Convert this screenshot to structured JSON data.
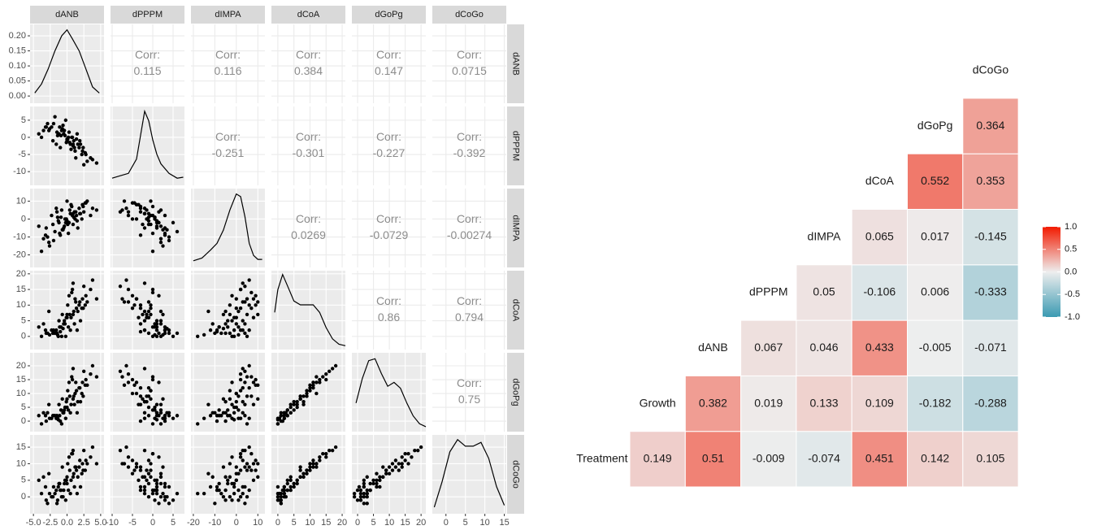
{
  "chart_data": [
    {
      "type": "pairs",
      "corr_label": "Corr:",
      "variables": [
        {
          "name": "dANB",
          "xlim": [
            -5.5,
            5.5
          ],
          "xticks": [
            {
              "value": -5,
              "label": "-5.0"
            },
            -2.5,
            {
              "value": 0,
              "label": "0.0"
            },
            2.5,
            {
              "value": 5,
              "label": "5.0"
            }
          ],
          "values": [
            0.5,
            -1.2,
            2.3,
            -3.1,
            1.0,
            0.2,
            -0.8,
            3.5,
            -2.0,
            1.8,
            -0.3,
            0.9,
            -1.5,
            2.8,
            0.0,
            -2.6,
            1.4,
            -0.6,
            3.0,
            -4.2,
            0.7,
            -1.0,
            2.0,
            -0.2,
            1.2,
            -3.5,
            0.4,
            -1.8,
            2.5,
            -0.9,
            1.6,
            -2.3,
            0.1,
            3.8,
            -1.3,
            0.6,
            -2.9,
            1.9,
            -0.4,
            2.2,
            -1.6,
            0.3,
            -3.8,
            1.1,
            -0.7,
            2.7,
            -2.1,
            0.8,
            -1.1,
            4.4,
            -0.1,
            1.5,
            -2.7,
            0.9,
            -1.4,
            2.4,
            -0.5,
            1.3,
            -3.2,
            0.0
          ],
          "density": {
            "x": [
              -4.8,
              -3.8,
              -2.8,
              -1.8,
              -0.8,
              0,
              0.8,
              1.8,
              2.8,
              3.8,
              4.8
            ],
            "y": [
              0.01,
              0.04,
              0.09,
              0.15,
              0.2,
              0.22,
              0.19,
              0.15,
              0.09,
              0.03,
              0.01
            ],
            "ylim": [
              -0.024,
              0.238
            ],
            "yticks": [
              {
                "value": 0,
                "label": "0.00"
              },
              0.05,
              {
                "value": 0.1,
                "label": "0.10"
              },
              0.15,
              {
                "value": 0.2,
                "label": "0.20"
              }
            ]
          }
        },
        {
          "name": "dPPPM",
          "xlim": [
            -10.4,
            7.8
          ],
          "xticks": [
            -10,
            -5,
            0,
            5
          ],
          "ylim": [
            -14,
            9
          ],
          "yticks": [
            -10,
            -5,
            0,
            5
          ],
          "values": [
            -2,
            1,
            -4,
            3,
            -1,
            0,
            2,
            -6,
            4,
            -3,
            0.5,
            -2.5,
            1.5,
            -5,
            -1,
            2.5,
            -0.5,
            3.5,
            -7,
            1,
            0,
            -3,
            -2,
            5,
            -4,
            2,
            -1.5,
            6,
            -8,
            0.5,
            -2,
            3,
            -0.5,
            -6.5,
            1,
            -3.5,
            4,
            -1,
            2,
            -5,
            -2,
            1.5,
            0,
            -3,
            2.5,
            -4.5,
            -1,
            0,
            3,
            -7.5,
            -1.5,
            1,
            2,
            -2,
            0.5,
            -3,
            1,
            -6,
            3,
            -0.5
          ],
          "density": {
            "x": [
              -10,
              -8,
              -6,
              -4,
              -3,
              -2,
              -1,
              0,
              1,
              2,
              4,
              6,
              7.5
            ],
            "y": [
              0.01,
              0.015,
              0.02,
              0.05,
              0.1,
              0.15,
              0.13,
              0.09,
              0.06,
              0.04,
              0.02,
              0.01,
              0.012
            ],
            "ylim": [
              -0.005,
              0.16
            ]
          }
        },
        {
          "name": "dIMPA",
          "xlim": [
            -21.1,
            13.3
          ],
          "xticks": [
            -20,
            -10,
            0,
            10
          ],
          "ylim": [
            -27,
            17
          ],
          "yticks": [
            -20,
            -10,
            0,
            10
          ],
          "values": [
            3,
            -2,
            8,
            -5,
            1,
            -8,
            5,
            2,
            -12,
            6,
            0,
            -3,
            4,
            9,
            -1,
            -15,
            2,
            -6,
            10,
            -4,
            7,
            -9,
            3,
            -2,
            0,
            -11,
            5,
            -7,
            4,
            1,
            -5,
            2,
            -3,
            6,
            -1,
            8,
            -10,
            3,
            -4,
            0,
            6,
            -2,
            -18,
            4,
            -6,
            9,
            -3,
            2,
            -8,
            5,
            0,
            -1,
            -13,
            3,
            1,
            7,
            -5,
            4,
            -9,
            10
          ],
          "density": {
            "x": [
              -20,
              -16,
              -12,
              -9,
              -6,
              -3,
              0,
              2,
              4,
              6,
              8,
              10,
              12
            ],
            "y": [
              0.002,
              0.004,
              0.01,
              0.015,
              0.025,
              0.04,
              0.052,
              0.05,
              0.035,
              0.015,
              0.006,
              0.003,
              0.003
            ],
            "ylim": [
              -0.003,
              0.056
            ]
          }
        },
        {
          "name": "dCoA",
          "xlim": [
            -2,
            21
          ],
          "xticks": [
            0,
            5,
            10,
            15,
            20
          ],
          "ylim": [
            -4.2,
            21
          ],
          "yticks": [
            0,
            5,
            10,
            15,
            20
          ],
          "values": [
            2,
            5,
            12,
            1,
            8,
            3,
            0,
            15,
            2,
            10,
            4,
            7,
            1,
            13,
            6,
            0.5,
            9,
            2.5,
            11,
            3,
            14,
            1.5,
            5,
            0,
            12,
            4,
            7,
            1,
            16,
            3,
            8,
            2,
            10,
            18,
            0,
            6,
            1,
            11,
            5,
            9,
            2,
            13,
            0,
            4,
            7,
            10,
            1,
            15,
            3,
            12,
            6,
            2,
            8,
            17,
            0.5,
            9,
            4,
            11,
            2,
            7
          ],
          "density": {
            "x": [
              -1,
              0,
              1.5,
              3,
              5,
              7,
              9,
              11,
              13,
              15,
              17,
              19,
              21
            ],
            "y": [
              0.045,
              0.075,
              0.095,
              0.08,
              0.06,
              0.055,
              0.055,
              0.055,
              0.045,
              0.025,
              0.01,
              0.003,
              0.001
            ],
            "ylim": [
              -0.004,
              0.1
            ]
          }
        },
        {
          "name": "dGoPg",
          "xlim": [
            -1.8,
            21.5
          ],
          "xticks": [
            0,
            5,
            10,
            15,
            20
          ],
          "ylim": [
            -3.8,
            24.7
          ],
          "yticks": [
            0,
            5,
            10,
            15,
            20
          ],
          "values": [
            3,
            6,
            14,
            0,
            9,
            4,
            -1,
            17,
            2,
            12,
            5,
            8,
            2,
            15,
            5,
            1,
            11,
            3,
            13,
            2,
            16,
            0,
            7,
            1,
            10,
            3,
            9,
            2,
            18,
            4,
            7,
            1,
            11,
            20,
            0.5,
            6,
            3,
            12,
            4,
            10,
            1,
            14,
            -1,
            6,
            8,
            13,
            2,
            15,
            2,
            16,
            7,
            3,
            6,
            19,
            1,
            9,
            3,
            14,
            2,
            8
          ],
          "density": {
            "x": [
              -0.5,
              1.5,
              3.5,
              5.5,
              7.5,
              9.5,
              11.5,
              13.5,
              15.5,
              17.5,
              19.5,
              21.5
            ],
            "y": [
              0.025,
              0.05,
              0.068,
              0.07,
              0.055,
              0.042,
              0.046,
              0.04,
              0.025,
              0.012,
              0.004,
              0.001
            ],
            "ylim": [
              -0.004,
              0.076
            ]
          }
        },
        {
          "name": "dCoGo",
          "xlim": [
            -3.5,
            15.5
          ],
          "xticks": [
            0,
            5,
            10,
            15
          ],
          "ylim": [
            -5.1,
            18.7
          ],
          "yticks": [
            0,
            5,
            10,
            15
          ],
          "values": [
            1,
            4,
            10,
            -1,
            7,
            2,
            0,
            12,
            3,
            9,
            5,
            6,
            -2,
            11,
            4,
            1,
            8,
            0,
            10,
            5,
            13,
            2,
            3,
            -1,
            9,
            6,
            8,
            1,
            14,
            2,
            6,
            0,
            10,
            15,
            3,
            5,
            -2,
            11,
            4,
            7,
            2,
            12,
            1,
            3,
            9,
            8,
            0,
            13,
            4,
            10,
            5,
            1,
            7,
            14,
            -1,
            8,
            2,
            9,
            3,
            6
          ],
          "density": {
            "x": [
              -3,
              -1,
              1,
              3,
              5,
              7,
              9,
              11,
              13,
              15
            ],
            "y": [
              0.003,
              0.03,
              0.062,
              0.075,
              0.068,
              0.068,
              0.072,
              0.055,
              0.025,
              0.005
            ],
            "ylim": [
              -0.004,
              0.08
            ]
          }
        }
      ],
      "correlations": [
        [
          0.115,
          0.116,
          0.384,
          0.147,
          0.0715
        ],
        [
          -0.251,
          -0.301,
          -0.227,
          -0.392
        ],
        [
          0.0269,
          -0.0729,
          -0.00274
        ],
        [
          0.86,
          0.794
        ],
        [
          0.75
        ]
      ]
    },
    {
      "type": "heatmap",
      "labels": [
        "Treatment",
        "Growth",
        "dANB",
        "dPPPM",
        "dIMPA",
        "dCoA",
        "dGoPg",
        "dCoGo"
      ],
      "values": [
        [
          0.149,
          0.51,
          -0.009,
          -0.074,
          0.451,
          0.142,
          0.105
        ],
        [
          0.382,
          0.019,
          0.133,
          0.109,
          -0.182,
          -0.288
        ],
        [
          0.067,
          0.046,
          0.433,
          -0.005,
          -0.071
        ],
        [
          0.05,
          -0.106,
          0.006,
          -0.333
        ],
        [
          0.065,
          0.017,
          -0.145
        ],
        [
          0.552,
          0.353
        ],
        [
          0.364
        ]
      ],
      "colors": {
        "low": "#3B9AB2",
        "mid": "#EEEEEE",
        "high": "#F21A00"
      },
      "colorbar": {
        "lim": [
          -1,
          1
        ],
        "ticks": [
          {
            "value": -1,
            "label": "-1.0"
          },
          -0.5,
          {
            "value": 0,
            "label": "0.0"
          },
          0.5,
          {
            "value": 1,
            "label": "1.0"
          }
        ]
      }
    }
  ]
}
